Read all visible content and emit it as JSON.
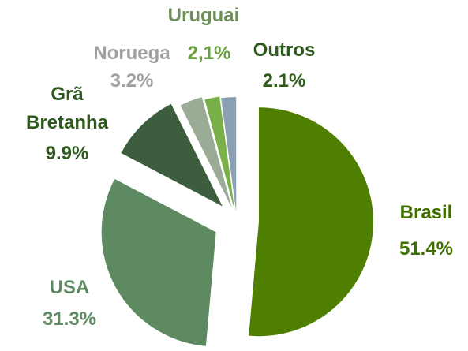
{
  "chart_data": {
    "type": "pie",
    "categories": [
      "Brasil",
      "USA",
      "Grã Bretanha",
      "Noruega",
      "Uruguai",
      "Outros"
    ],
    "values": [
      51.4,
      31.3,
      9.9,
      3.2,
      2.1,
      2.1
    ],
    "value_labels": [
      "51.4%",
      "31.3%",
      "9.9%",
      "3.2%",
      "2,1%",
      "2.1%"
    ],
    "colors": [
      "#4f7f00",
      "#5e8a62",
      "#3d5e3e",
      "#9aab96",
      "#7ab04a",
      "#8a9fb0"
    ]
  }
}
